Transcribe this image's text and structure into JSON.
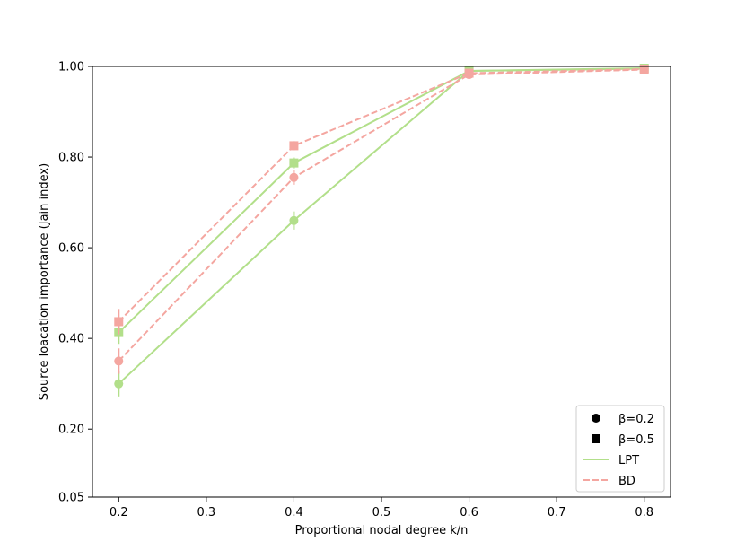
{
  "chart_data": {
    "type": "line",
    "title": "",
    "xlabel": "Proportional nodal degree k/n",
    "ylabel": "Source loacation importance (Jain index)",
    "xlim": [
      0.17,
      0.83
    ],
    "ylim": [
      0.05,
      1.0
    ],
    "xticks": [
      0.2,
      0.3,
      0.4,
      0.5,
      0.6,
      0.7,
      0.8
    ],
    "xtick_labels": [
      "0.2",
      "0.3",
      "0.4",
      "0.5",
      "0.6",
      "0.7",
      "0.8"
    ],
    "yticks": [
      0.05,
      0.2,
      0.4,
      0.6,
      0.8,
      1.0
    ],
    "ytick_labels": [
      "0.05",
      "0.20",
      "0.40",
      "0.60",
      "0.80",
      "1.00"
    ],
    "grid": false,
    "legend_position": "bottom-right",
    "legend": [
      {
        "label": "β=0.2",
        "kind": "marker",
        "marker": "circle"
      },
      {
        "label": "β=0.5",
        "kind": "marker",
        "marker": "square"
      },
      {
        "label": "LPT",
        "kind": "line",
        "color": "#b2df8a",
        "dash": "solid"
      },
      {
        "label": "BD",
        "kind": "line",
        "color": "#f4a6a0",
        "dash": "dashed"
      }
    ],
    "series": [
      {
        "method": "LPT",
        "beta": 0.2,
        "marker": "circle",
        "color": "#b2df8a",
        "dash": "solid",
        "x": [
          0.2,
          0.4,
          0.6,
          0.8
        ],
        "y": [
          0.3,
          0.66,
          0.99,
          0.995
        ],
        "err": [
          0.028,
          0.02,
          0.005,
          0.003
        ]
      },
      {
        "method": "LPT",
        "beta": 0.5,
        "marker": "square",
        "color": "#b2df8a",
        "dash": "solid",
        "x": [
          0.2,
          0.4,
          0.6,
          0.8
        ],
        "y": [
          0.413,
          0.787,
          0.99,
          0.996
        ],
        "err": [
          0.025,
          0.012,
          0.004,
          0.002
        ]
      },
      {
        "method": "BD",
        "beta": 0.2,
        "marker": "circle",
        "color": "#f4a6a0",
        "dash": "dashed",
        "x": [
          0.2,
          0.4,
          0.6,
          0.8
        ],
        "y": [
          0.35,
          0.755,
          0.982,
          0.993
        ],
        "err": [
          0.028,
          0.016,
          0.006,
          0.003
        ]
      },
      {
        "method": "BD",
        "beta": 0.5,
        "marker": "square",
        "color": "#f4a6a0",
        "dash": "dashed",
        "x": [
          0.2,
          0.4,
          0.6,
          0.8
        ],
        "y": [
          0.437,
          0.825,
          0.985,
          0.994
        ],
        "err": [
          0.028,
          0.01,
          0.005,
          0.002
        ]
      }
    ]
  }
}
